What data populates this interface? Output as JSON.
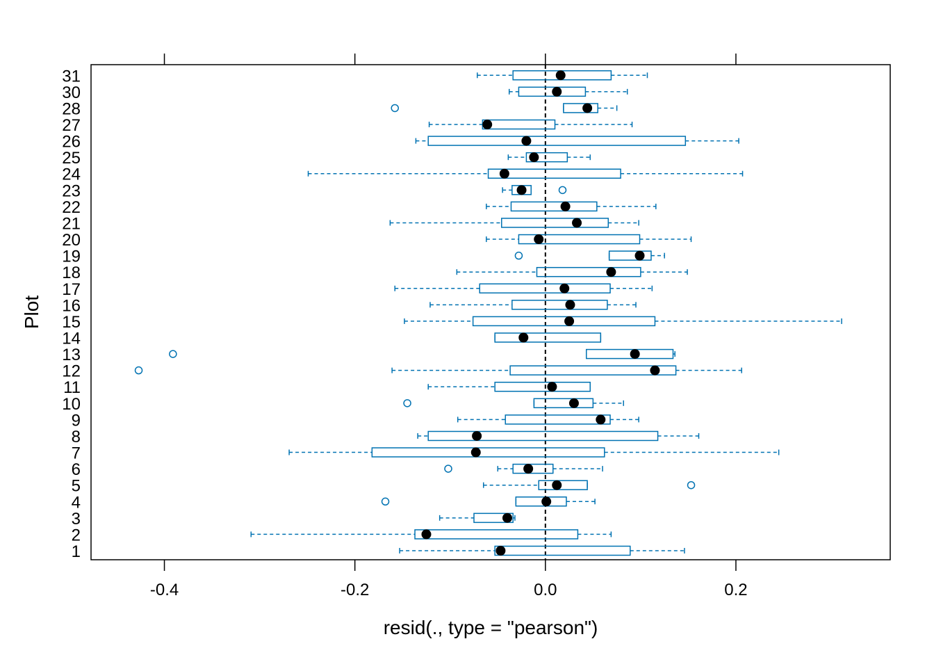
{
  "chart_data": {
    "type": "boxplot",
    "orientation": "horizontal",
    "title": "",
    "xlabel": "resid(., type = \"pearson\")",
    "ylabel": "Plot",
    "xlim": [
      -0.477,
      0.362
    ],
    "x_ticks": [
      -0.4,
      -0.2,
      0.0,
      0.2
    ],
    "x_tick_labels": [
      "-0.4",
      "-0.2",
      "0.0",
      "0.2"
    ],
    "reference_line_x": 0,
    "box_color": "#0072B2",
    "median_color": "#000000",
    "groups": [
      {
        "label": "1",
        "whisker_low": -0.153,
        "q1": -0.053,
        "median": -0.047,
        "q3": 0.089,
        "whisker_high": 0.146,
        "outliers": []
      },
      {
        "label": "2",
        "whisker_low": -0.309,
        "q1": -0.137,
        "median": -0.125,
        "q3": 0.034,
        "whisker_high": 0.069,
        "outliers": []
      },
      {
        "label": "3",
        "whisker_low": -0.111,
        "q1": -0.075,
        "median": -0.04,
        "q3": -0.034,
        "whisker_high": -0.032,
        "outliers": []
      },
      {
        "label": "4",
        "whisker_low": -0.031,
        "q1": -0.031,
        "median": 0.001,
        "q3": 0.022,
        "whisker_high": 0.052,
        "outliers": [
          -0.168
        ]
      },
      {
        "label": "5",
        "whisker_low": -0.065,
        "q1": -0.007,
        "median": 0.012,
        "q3": 0.044,
        "whisker_high": 0.044,
        "outliers": [
          0.153
        ]
      },
      {
        "label": "6",
        "whisker_low": -0.05,
        "q1": -0.034,
        "median": -0.018,
        "q3": 0.008,
        "whisker_high": 0.06,
        "outliers": [
          -0.102
        ]
      },
      {
        "label": "7",
        "whisker_low": -0.269,
        "q1": -0.182,
        "median": -0.073,
        "q3": 0.062,
        "whisker_high": 0.245,
        "outliers": []
      },
      {
        "label": "8",
        "whisker_low": -0.134,
        "q1": -0.123,
        "median": -0.072,
        "q3": 0.118,
        "whisker_high": 0.161,
        "outliers": []
      },
      {
        "label": "9",
        "whisker_low": -0.092,
        "q1": -0.042,
        "median": 0.058,
        "q3": 0.068,
        "whisker_high": 0.098,
        "outliers": []
      },
      {
        "label": "10",
        "whisker_low": -0.012,
        "q1": -0.012,
        "median": 0.03,
        "q3": 0.05,
        "whisker_high": 0.082,
        "outliers": [
          -0.145
        ]
      },
      {
        "label": "11",
        "whisker_low": -0.123,
        "q1": -0.053,
        "median": 0.007,
        "q3": 0.047,
        "whisker_high": 0.047,
        "outliers": []
      },
      {
        "label": "12",
        "whisker_low": -0.161,
        "q1": -0.037,
        "median": 0.115,
        "q3": 0.137,
        "whisker_high": 0.206,
        "outliers": [
          -0.427
        ]
      },
      {
        "label": "13",
        "whisker_low": 0.043,
        "q1": 0.043,
        "median": 0.094,
        "q3": 0.134,
        "whisker_high": 0.136,
        "outliers": [
          -0.391
        ]
      },
      {
        "label": "14",
        "whisker_low": -0.053,
        "q1": -0.053,
        "median": -0.023,
        "q3": 0.058,
        "whisker_high": 0.058,
        "outliers": []
      },
      {
        "label": "15",
        "whisker_low": -0.148,
        "q1": -0.076,
        "median": 0.025,
        "q3": 0.115,
        "whisker_high": 0.311,
        "outliers": []
      },
      {
        "label": "16",
        "whisker_low": -0.121,
        "q1": -0.035,
        "median": 0.026,
        "q3": 0.065,
        "whisker_high": 0.095,
        "outliers": []
      },
      {
        "label": "17",
        "whisker_low": -0.158,
        "q1": -0.069,
        "median": 0.02,
        "q3": 0.068,
        "whisker_high": 0.112,
        "outliers": []
      },
      {
        "label": "18",
        "whisker_low": -0.093,
        "q1": -0.009,
        "median": 0.069,
        "q3": 0.1,
        "whisker_high": 0.149,
        "outliers": []
      },
      {
        "label": "19",
        "whisker_low": 0.067,
        "q1": 0.067,
        "median": 0.099,
        "q3": 0.111,
        "whisker_high": 0.125,
        "outliers": [
          -0.028
        ]
      },
      {
        "label": "20",
        "whisker_low": -0.062,
        "q1": -0.028,
        "median": -0.007,
        "q3": 0.099,
        "whisker_high": 0.153,
        "outliers": []
      },
      {
        "label": "21",
        "whisker_low": -0.163,
        "q1": -0.046,
        "median": 0.033,
        "q3": 0.066,
        "whisker_high": 0.098,
        "outliers": []
      },
      {
        "label": "22",
        "whisker_low": -0.062,
        "q1": -0.036,
        "median": 0.021,
        "q3": 0.054,
        "whisker_high": 0.116,
        "outliers": []
      },
      {
        "label": "23",
        "whisker_low": -0.045,
        "q1": -0.035,
        "median": -0.025,
        "q3": -0.015,
        "whisker_high": -0.015,
        "outliers": [
          0.018
        ]
      },
      {
        "label": "24",
        "whisker_low": -0.249,
        "q1": -0.06,
        "median": -0.043,
        "q3": 0.079,
        "whisker_high": 0.207,
        "outliers": []
      },
      {
        "label": "25",
        "whisker_low": -0.039,
        "q1": -0.02,
        "median": -0.012,
        "q3": 0.023,
        "whisker_high": 0.047,
        "outliers": []
      },
      {
        "label": "26",
        "whisker_low": -0.136,
        "q1": -0.123,
        "median": -0.02,
        "q3": 0.147,
        "whisker_high": 0.203,
        "outliers": []
      },
      {
        "label": "27",
        "whisker_low": -0.122,
        "q1": -0.066,
        "median": -0.061,
        "q3": 0.01,
        "whisker_high": 0.091,
        "outliers": []
      },
      {
        "label": "28",
        "whisker_low": 0.019,
        "q1": 0.019,
        "median": 0.044,
        "q3": 0.055,
        "whisker_high": 0.075,
        "outliers": [
          -0.158
        ]
      },
      {
        "label": "30",
        "whisker_low": -0.038,
        "q1": -0.028,
        "median": 0.012,
        "q3": 0.042,
        "whisker_high": 0.086,
        "outliers": []
      },
      {
        "label": "31",
        "whisker_low": -0.0715,
        "q1": -0.034,
        "median": 0.016,
        "q3": 0.069,
        "whisker_high": 0.107,
        "outliers": []
      }
    ]
  }
}
